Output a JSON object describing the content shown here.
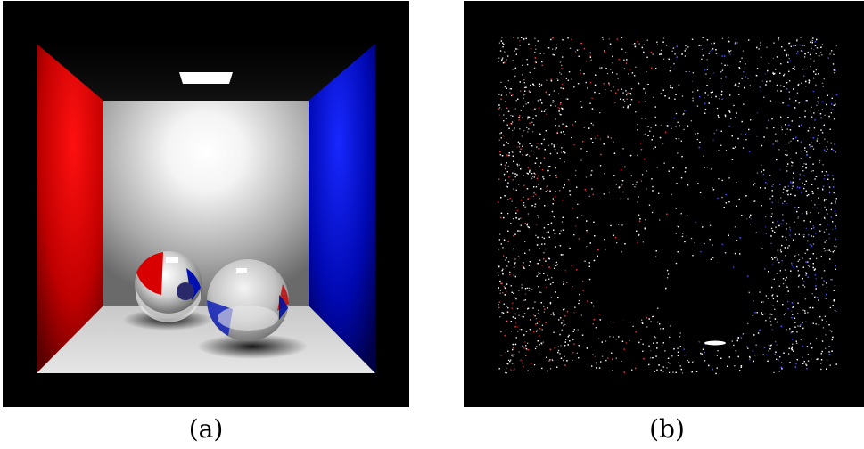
{
  "figure": {
    "panels": [
      {
        "id": "a",
        "caption": "(a)",
        "content": "cornell-box-render",
        "colors": {
          "left_wall": "#e00000",
          "right_wall": "#0010c8",
          "back_wall": "#ffffff",
          "floor": "#d8d8d8",
          "light": "#ffffff"
        }
      },
      {
        "id": "b",
        "caption": "(b)",
        "content": "cornell-box-noisy-indirect",
        "colors": {
          "noise_white": "#ffffff",
          "noise_red": "#ff3a3a",
          "noise_blue": "#4a5aff",
          "background": "#000000"
        }
      }
    ]
  }
}
